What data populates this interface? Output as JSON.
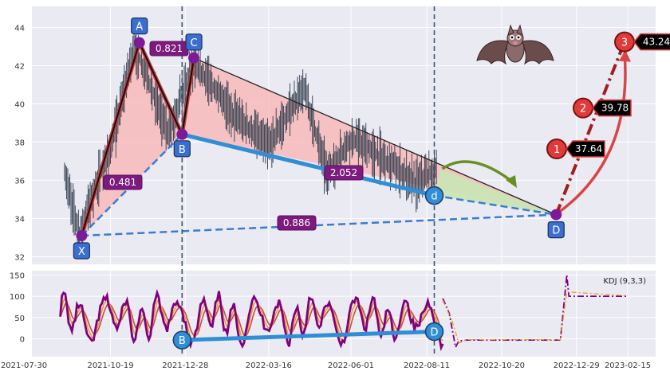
{
  "colors": {
    "panel_bg": "#eaeaf2",
    "grid": "#ffffff",
    "candle": "#2e3a4a",
    "pattern_fill": "#f7b7b7",
    "green_fill": "#c9e6b4",
    "xb_line": "#3a7bd5",
    "bd_line": "#2f8ed6",
    "point_blue": "#3a6fcf",
    "point_purple": "#7d1a9a",
    "ratio_bg": "#7d1a7d",
    "target_red": "#e03a3a",
    "target_dark": "#a51d1d",
    "arrow_green": "#6b8e23",
    "kdj_k": "#f0a020",
    "kdj_d": "#c0504d",
    "kdj_j": "#800080",
    "vline": "#3b5573"
  },
  "chart_data": [
    {
      "type": "candlestick",
      "title": "",
      "x_ticks": [
        "2021-07-30",
        "2021-10-19",
        "2021-12-28",
        "2022-03-16",
        "2022-06-01",
        "2022-08-11",
        "2022-10-20",
        "2022-12-29",
        "2023-02-15"
      ],
      "y_ticks": [
        32,
        34,
        36,
        38,
        40,
        42,
        44
      ],
      "ylim": [
        31.6,
        45.1
      ],
      "grid": true,
      "price_path": [
        {
          "date": "2021-09-06",
          "close": 36.3
        },
        {
          "date": "2021-09-20",
          "close": 33.2
        },
        {
          "date": "2021-10-04",
          "close": 35.6
        },
        {
          "date": "2021-10-19",
          "close": 37.5
        },
        {
          "date": "2021-11-10",
          "close": 43.1
        },
        {
          "date": "2021-11-25",
          "close": 41.0
        },
        {
          "date": "2021-12-12",
          "close": 38.5
        },
        {
          "date": "2022-01-05",
          "close": 42.2
        },
        {
          "date": "2022-02-10",
          "close": 39.5
        },
        {
          "date": "2022-03-16",
          "close": 37.8
        },
        {
          "date": "2022-04-18",
          "close": 40.8
        },
        {
          "date": "2022-05-10",
          "close": 36.3
        },
        {
          "date": "2022-06-01",
          "close": 38.2
        },
        {
          "date": "2022-07-05",
          "close": 37.0
        },
        {
          "date": "2022-08-01",
          "close": 35.8
        },
        {
          "date": "2022-08-20",
          "close": 36.6
        }
      ],
      "harmonic_points": [
        {
          "label": "X",
          "date": "2021-09-22",
          "value": 33.1
        },
        {
          "label": "A",
          "date": "2021-11-15",
          "value": 43.2
        },
        {
          "label": "B",
          "date": "2021-12-25",
          "value": 38.4
        },
        {
          "label": "C",
          "date": "2022-01-05",
          "value": 42.4
        },
        {
          "label": "d",
          "date": "2022-08-18",
          "value": 35.2
        },
        {
          "label": "D",
          "date": "2022-12-10",
          "value": 34.2
        }
      ],
      "ratios": [
        {
          "text": "0.481",
          "from": "X",
          "to": "B"
        },
        {
          "text": "0.821",
          "from": "A",
          "to": "C"
        },
        {
          "text": "2.052",
          "from": "B",
          "to": "d"
        },
        {
          "text": "0.886",
          "from": "X",
          "to": "D"
        }
      ],
      "targets": [
        {
          "num": "1",
          "value": 37.64,
          "label": "37.64"
        },
        {
          "num": "2",
          "value": 39.78,
          "label": "39.78"
        },
        {
          "num": "3",
          "value": 43.24,
          "label": "43.24"
        }
      ],
      "vlines": [
        "2021-12-25",
        "2022-08-18"
      ]
    },
    {
      "type": "line",
      "title": "KDJ (9,3,3)",
      "y_ticks": [
        0,
        50,
        100,
        150
      ],
      "ylim": [
        -42,
        160
      ],
      "series": [
        {
          "name": "K",
          "values": []
        },
        {
          "name": "D",
          "values": []
        },
        {
          "name": "J",
          "values": []
        }
      ],
      "divergence_points": [
        {
          "label": "B",
          "value": -3
        },
        {
          "label": "D",
          "value": 17
        }
      ]
    }
  ]
}
